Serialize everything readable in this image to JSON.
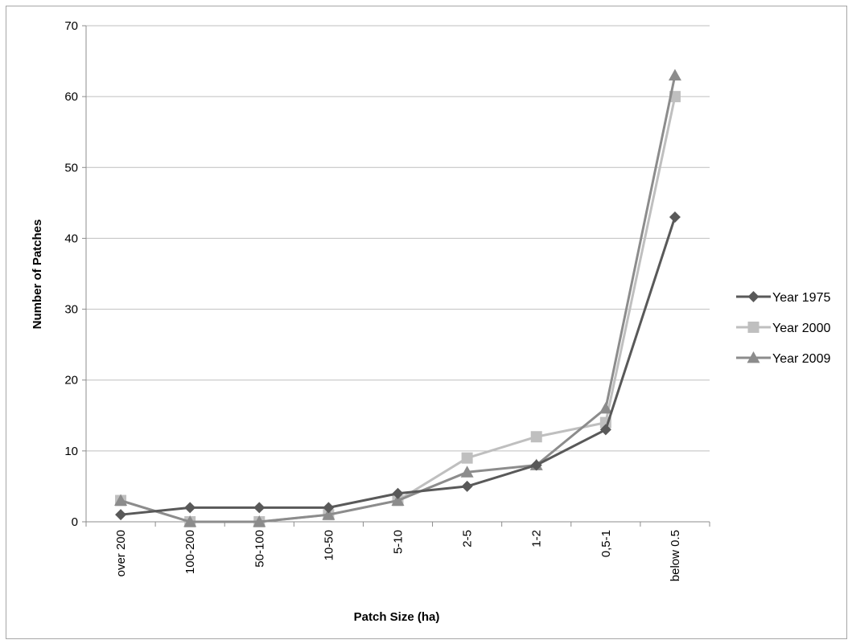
{
  "chart_data": {
    "type": "line",
    "title": "",
    "xlabel": "Patch Size (ha)",
    "ylabel": "Number of Patches",
    "categories": [
      "over 200",
      "100-200",
      "50-100",
      "10-50",
      "5-10",
      "2-5",
      "1-2",
      "0,5-1",
      "below 0.5"
    ],
    "ylim": [
      0,
      70
    ],
    "yticks": [
      "0",
      "10",
      "20",
      "30",
      "40",
      "50",
      "60",
      "70"
    ],
    "grid": true,
    "legend_position": "right",
    "series": [
      {
        "name": "Year 1975",
        "marker": "diamond",
        "color": "#595959",
        "values": [
          1,
          2,
          2,
          2,
          4,
          5,
          8,
          13,
          43
        ]
      },
      {
        "name": "Year 2000",
        "marker": "square",
        "color": "#bfbfbf",
        "values": [
          3,
          0,
          0,
          1,
          3,
          9,
          12,
          14,
          60
        ]
      },
      {
        "name": "Year 2009",
        "marker": "triangle",
        "color": "#8c8c8c",
        "values": [
          3,
          0,
          0,
          1,
          3,
          7,
          8,
          16,
          63
        ]
      }
    ]
  }
}
